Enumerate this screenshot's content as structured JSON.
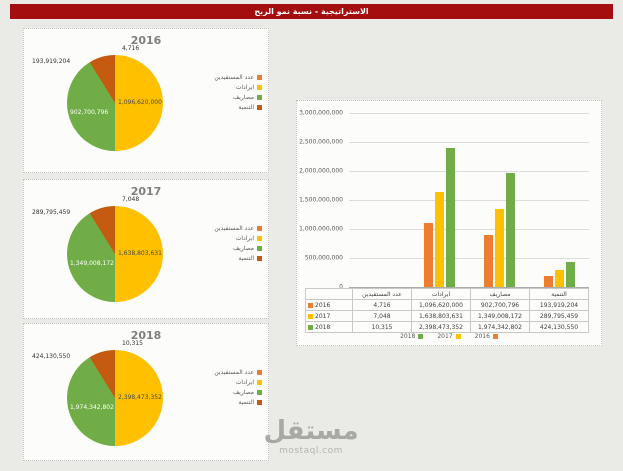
{
  "titlebar": {
    "title": "الاستراتيجية - نسبة نمو الربح",
    "bg": "#A50E0E"
  },
  "categories": [
    "عدد المستفيدين",
    "ايرادات",
    "مصاريف",
    "التنمية"
  ],
  "category_colors": [
    "#ED7D31",
    "#FFC000",
    "#70AD47",
    "#C55A11"
  ],
  "chart_data": [
    {
      "type": "pie",
      "title": "2016",
      "categories": [
        "عدد المستفيدين",
        "ايرادات",
        "مصاريف",
        "التنمية"
      ],
      "colors": [
        "#ED7D31",
        "#FFC000",
        "#70AD47",
        "#C55A11"
      ],
      "values": [
        4716,
        1096620000,
        902700796,
        193919204
      ],
      "labels": {
        "count": "4,716",
        "revenue": "1,096,620,000",
        "expense": "902,700,796",
        "development": "193,919,204"
      },
      "legend_position": "right"
    },
    {
      "type": "pie",
      "title": "2017",
      "categories": [
        "عدد المستفيدين",
        "ايرادات",
        "مصاريف",
        "التنمية"
      ],
      "colors": [
        "#ED7D31",
        "#FFC000",
        "#70AD47",
        "#C55A11"
      ],
      "values": [
        7048,
        1638803631,
        1349008172,
        289795459
      ],
      "labels": {
        "count": "7,048",
        "revenue": "1,638,803,631",
        "expense": "1,349,008,172",
        "development": "289,795,459"
      },
      "legend_position": "right"
    },
    {
      "type": "pie",
      "title": "2018",
      "categories": [
        "عدد المستفيدين",
        "ايرادات",
        "مصاريف",
        "التنمية"
      ],
      "colors": [
        "#ED7D31",
        "#FFC000",
        "#70AD47",
        "#C55A11"
      ],
      "values": [
        10315,
        2398473352,
        1974342802,
        424130550
      ],
      "labels": {
        "count": "10,315",
        "revenue": "2,398,473,352",
        "expense": "1,974,342,802",
        "development": "424,130,550"
      },
      "legend_position": "right"
    },
    {
      "type": "bar",
      "title": "",
      "xlabel": "",
      "ylabel": "",
      "categories": [
        "عدد المستفيدين",
        "ايرادات",
        "مصاريف",
        "التنمية"
      ],
      "series": [
        {
          "name": "2016",
          "color": "#ED7D31",
          "values": [
            4716,
            1096620000,
            902700796,
            193919204
          ],
          "values_fmt": [
            "4,716",
            "1,096,620,000",
            "902,700,796",
            "193,919,204"
          ]
        },
        {
          "name": "2017",
          "color": "#FFC000",
          "values": [
            7048,
            1638803631,
            1349008172,
            289795459
          ],
          "values_fmt": [
            "7,048",
            "1,638,803,631",
            "1,349,008,172",
            "289,795,459"
          ]
        },
        {
          "name": "2018",
          "color": "#70AD47",
          "values": [
            10315,
            2398473352,
            1974342802,
            424130550
          ],
          "values_fmt": [
            "10,315",
            "2,398,473,352",
            "1,974,342,802",
            "424,130,550"
          ]
        }
      ],
      "ylim": [
        0,
        3000000000
      ],
      "yticks": [
        "3,000,000,000",
        "2,500,000,000",
        "2,000,000,000",
        "1,500,000,000",
        "1,000,000,000",
        "500,000,000",
        "0"
      ],
      "grid": true,
      "legend_position": "bottom",
      "data_table": true
    }
  ],
  "watermark": {
    "brand": "مستقل",
    "domain": "mostaql.com"
  }
}
